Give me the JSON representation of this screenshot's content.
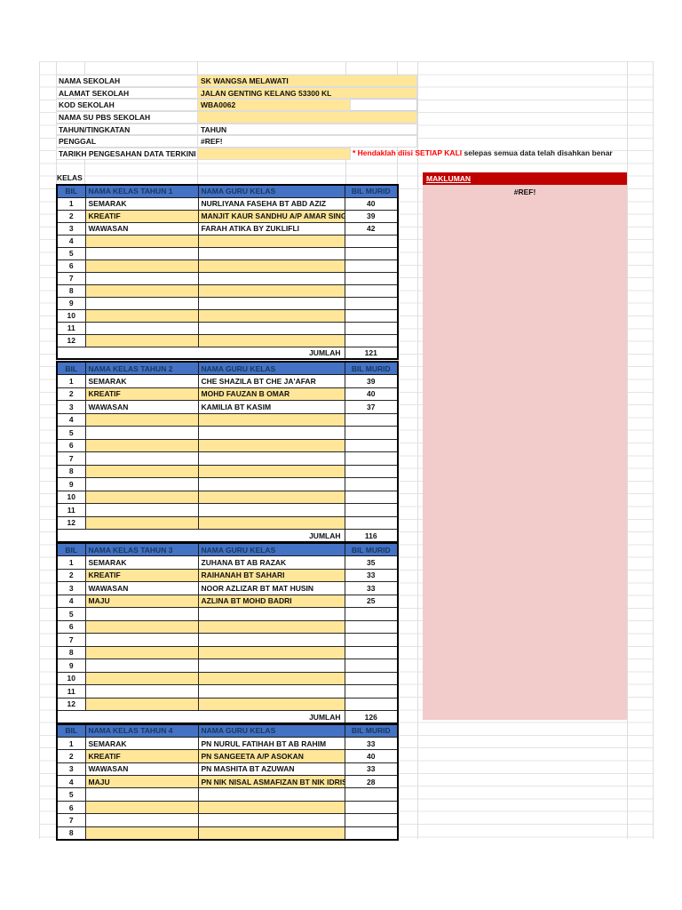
{
  "colors": {
    "header_blue": "#4472C4",
    "fill_yellow": "#FFE699",
    "banner_red": "#C00000",
    "panel_pink": "#F2CBCB",
    "note_red": "#FF0000"
  },
  "page": {
    "kelas_label": "KELAS",
    "makluman_label": "MAKLUMAN",
    "makluman_value": "#REF!",
    "note_red": "* Hendaklah diisi SETIAP KALI",
    "note_rest": " selepas semua data telah disahkan benar"
  },
  "info": {
    "rows": [
      {
        "label": "NAMA SEKOLAH",
        "value": "SK WANGSA MELAWATI",
        "fill": "wide"
      },
      {
        "label": "ALAMAT SEKOLAH",
        "value": "JALAN GENTING KELANG 53300 KL",
        "fill": "wide"
      },
      {
        "label": "KOD SEKOLAH",
        "value": "WBA0062",
        "fill": "split"
      },
      {
        "label": "NAMA SU PBS SEKOLAH",
        "value": "",
        "fill": "wide"
      },
      {
        "label": "TAHUN/TINGKATAN",
        "value": "TAHUN",
        "fill": "none"
      },
      {
        "label": "PENGGAL",
        "value": "#REF!",
        "fill": "none"
      },
      {
        "label": "TARIKH PENGESAHAN DATA TERKINI",
        "value": "",
        "fill": "narrow"
      }
    ]
  },
  "table_headers": {
    "bil": "BIL",
    "guru": "NAMA GURU KELAS",
    "murid": "BIL MURID",
    "jumlah": "JUMLAH"
  },
  "tables": [
    {
      "title": "NAMA KELAS TAHUN 1",
      "rows": [
        [
          "1",
          "SEMARAK",
          "NURLIYANA FASEHA BT ABD AZIZ",
          "40"
        ],
        [
          "2",
          "KREATIF",
          "MANJIT KAUR SANDHU A/P AMAR SINGH",
          "39"
        ],
        [
          "3",
          "WAWASAN",
          "FARAH ATIKA BY ZUKLIFLI",
          "42"
        ],
        [
          "4",
          "",
          "",
          ""
        ],
        [
          "5",
          "",
          "",
          ""
        ],
        [
          "6",
          "",
          "",
          ""
        ],
        [
          "7",
          "",
          "",
          ""
        ],
        [
          "8",
          "",
          "",
          ""
        ],
        [
          "9",
          "",
          "",
          ""
        ],
        [
          "10",
          "",
          "",
          ""
        ],
        [
          "11",
          "",
          "",
          ""
        ],
        [
          "12",
          "",
          "",
          ""
        ]
      ],
      "jumlah": "121"
    },
    {
      "title": "NAMA KELAS TAHUN 2",
      "rows": [
        [
          "1",
          "SEMARAK",
          "CHE SHAZILA BT CHE JA'AFAR",
          "39"
        ],
        [
          "2",
          "KREATIF",
          "MOHD FAUZAN B OMAR",
          "40"
        ],
        [
          "3",
          "WAWASAN",
          "KAMILIA BT KASIM",
          "37"
        ],
        [
          "4",
          "",
          "",
          ""
        ],
        [
          "5",
          "",
          "",
          ""
        ],
        [
          "6",
          "",
          "",
          ""
        ],
        [
          "7",
          "",
          "",
          ""
        ],
        [
          "8",
          "",
          "",
          ""
        ],
        [
          "9",
          "",
          "",
          ""
        ],
        [
          "10",
          "",
          "",
          ""
        ],
        [
          "11",
          "",
          "",
          ""
        ],
        [
          "12",
          "",
          "",
          ""
        ]
      ],
      "jumlah": "116"
    },
    {
      "title": "NAMA KELAS TAHUN 3",
      "rows": [
        [
          "1",
          "SEMARAK",
          "ZUHANA BT AB RAZAK",
          "35"
        ],
        [
          "2",
          "KREATIF",
          "RAIHANAH BT SAHARI",
          "33"
        ],
        [
          "3",
          "WAWASAN",
          "NOOR AZLIZAR BT MAT HUSIN",
          "33"
        ],
        [
          "4",
          "MAJU",
          "AZLINA BT MOHD BADRI",
          "25"
        ],
        [
          "5",
          "",
          "",
          ""
        ],
        [
          "6",
          "",
          "",
          ""
        ],
        [
          "7",
          "",
          "",
          ""
        ],
        [
          "8",
          "",
          "",
          ""
        ],
        [
          "9",
          "",
          "",
          ""
        ],
        [
          "10",
          "",
          "",
          ""
        ],
        [
          "11",
          "",
          "",
          ""
        ],
        [
          "12",
          "",
          "",
          ""
        ]
      ],
      "jumlah": "126"
    },
    {
      "title": "NAMA KELAS TAHUN 4",
      "rows": [
        [
          "1",
          "SEMARAK",
          "PN NURUL FATIHAH BT AB RAHIM",
          "33"
        ],
        [
          "2",
          "KREATIF",
          "PN SANGEETA A/P ASOKAN",
          "40"
        ],
        [
          "3",
          "WAWASAN",
          "PN MASHITA BT AZUWAN",
          "33"
        ],
        [
          "4",
          "MAJU",
          "PN NIK NISAL ASMAFIZAN BT NIK IDRIS",
          "28"
        ],
        [
          "5",
          "",
          "",
          ""
        ],
        [
          "6",
          "",
          "",
          ""
        ],
        [
          "7",
          "",
          "",
          ""
        ],
        [
          "8",
          "",
          "",
          ""
        ]
      ],
      "jumlah": null
    }
  ]
}
